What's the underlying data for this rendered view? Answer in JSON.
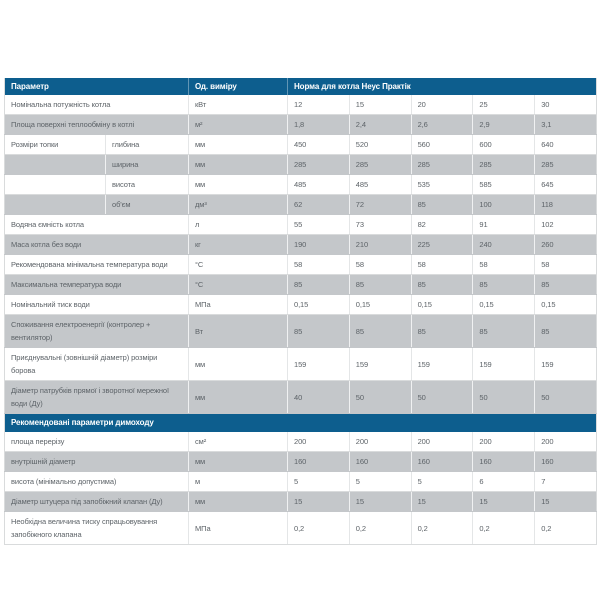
{
  "colors": {
    "header_bg": "#0d5e8e",
    "shade_row_bg": "#c4c7ca",
    "row_bg": "#ffffff",
    "body_text": "#5d6368",
    "header_text": "#ffffff"
  },
  "table": {
    "header": {
      "param": "Параметр",
      "unit": "Од. виміру",
      "norm": "Норма для котла Неус Практік"
    },
    "rows": [
      {
        "type": "data",
        "param": "Номінальна потужність котла",
        "sub": "",
        "unit": "кВт",
        "values": [
          "12",
          "15",
          "20",
          "25",
          "30"
        ],
        "shade": false
      },
      {
        "type": "data",
        "param": "Площа поверхні теплообміну в котлі",
        "sub": "",
        "unit": "м²",
        "values": [
          "1,8",
          "2,4",
          "2,6",
          "2,9",
          "3,1"
        ],
        "shade": true
      },
      {
        "type": "data",
        "param": "Розміри топки",
        "sub": "глибина",
        "unit": "мм",
        "values": [
          "450",
          "520",
          "560",
          "600",
          "640"
        ],
        "shade": false
      },
      {
        "type": "data",
        "param": "",
        "sub": "ширина",
        "unit": "мм",
        "values": [
          "285",
          "285",
          "285",
          "285",
          "285"
        ],
        "shade": true
      },
      {
        "type": "data",
        "param": "",
        "sub": "висота",
        "unit": "мм",
        "values": [
          "485",
          "485",
          "535",
          "585",
          "645"
        ],
        "shade": false
      },
      {
        "type": "data",
        "param": "",
        "sub": "об'єм",
        "unit": "дм³",
        "values": [
          "62",
          "72",
          "85",
          "100",
          "118"
        ],
        "shade": true
      },
      {
        "type": "data",
        "param": "Водяна ємність котла",
        "sub": "",
        "unit": "л",
        "values": [
          "55",
          "73",
          "82",
          "91",
          "102"
        ],
        "shade": false
      },
      {
        "type": "data",
        "param": "Маса котла без води",
        "sub": "",
        "unit": "кг",
        "values": [
          "190",
          "210",
          "225",
          "240",
          "260"
        ],
        "shade": true
      },
      {
        "type": "data",
        "param": "Рекомендована мінімальна температура води",
        "sub": "",
        "unit": "°С",
        "values": [
          "58",
          "58",
          "58",
          "58",
          "58"
        ],
        "shade": false
      },
      {
        "type": "data",
        "param": "Максимальна температура води",
        "sub": "",
        "unit": "°С",
        "values": [
          "85",
          "85",
          "85",
          "85",
          "85"
        ],
        "shade": true
      },
      {
        "type": "data",
        "param": "Номінальний тиск води",
        "sub": "",
        "unit": "МПа",
        "values": [
          "0,15",
          "0,15",
          "0,15",
          "0,15",
          "0,15"
        ],
        "shade": false
      },
      {
        "type": "data",
        "param": "Споживання електроенергії (контролер + вентилятор)",
        "sub": "",
        "unit": "Вт",
        "values": [
          "85",
          "85",
          "85",
          "85",
          "85"
        ],
        "shade": true
      },
      {
        "type": "data",
        "param": "Приєднувальні (зовнішній діаметр) розміри борова",
        "sub": "",
        "unit": "мм",
        "values": [
          "159",
          "159",
          "159",
          "159",
          "159"
        ],
        "shade": false
      },
      {
        "type": "data",
        "param": "Діаметр патрубків прямої і зворотної мережної води (Ду)",
        "sub": "",
        "unit": "мм",
        "values": [
          "40",
          "50",
          "50",
          "50",
          "50"
        ],
        "shade": true
      },
      {
        "type": "section",
        "label": "Рекомендовані параметри димоходу"
      },
      {
        "type": "data",
        "param": "площа перерізу",
        "sub": "",
        "unit": "см²",
        "values": [
          "200",
          "200",
          "200",
          "200",
          "200"
        ],
        "shade": false
      },
      {
        "type": "data",
        "param": "внутрішній діаметр",
        "sub": "",
        "unit": "мм",
        "values": [
          "160",
          "160",
          "160",
          "160",
          "160"
        ],
        "shade": true
      },
      {
        "type": "data",
        "param": "висота (мінімально допустима)",
        "sub": "",
        "unit": "м",
        "values": [
          "5",
          "5",
          "5",
          "6",
          "7"
        ],
        "shade": false
      },
      {
        "type": "data",
        "param": "Діаметр штуцера під запобіжний клапан (Ду)",
        "sub": "",
        "unit": "мм",
        "values": [
          "15",
          "15",
          "15",
          "15",
          "15"
        ],
        "shade": true
      },
      {
        "type": "data",
        "param": "Необхідна величина тиску спрацьовування запобіжного клапана",
        "sub": "",
        "unit": "МПа",
        "values": [
          "0,2",
          "0,2",
          "0,2",
          "0,2",
          "0,2"
        ],
        "shade": false
      }
    ]
  }
}
